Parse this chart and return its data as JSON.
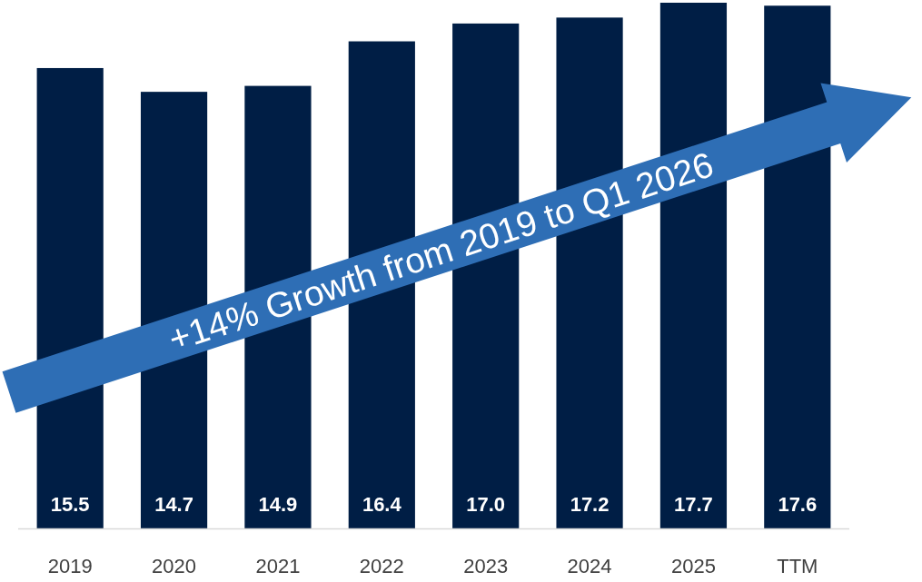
{
  "chart_data": {
    "type": "bar",
    "categories": [
      "2019",
      "2020",
      "2021",
      "2022",
      "2023",
      "2024",
      "2025",
      "TTM"
    ],
    "values": [
      15.5,
      14.7,
      14.9,
      16.4,
      17.0,
      17.2,
      17.7,
      17.6
    ],
    "value_labels": [
      "15.5",
      "14.7",
      "14.9",
      "16.4",
      "17.0",
      "17.2",
      "17.7",
      "17.6"
    ],
    "color": "#001e45",
    "annotations": [
      "+14% Growth from 2019 to Q1 2026"
    ]
  }
}
